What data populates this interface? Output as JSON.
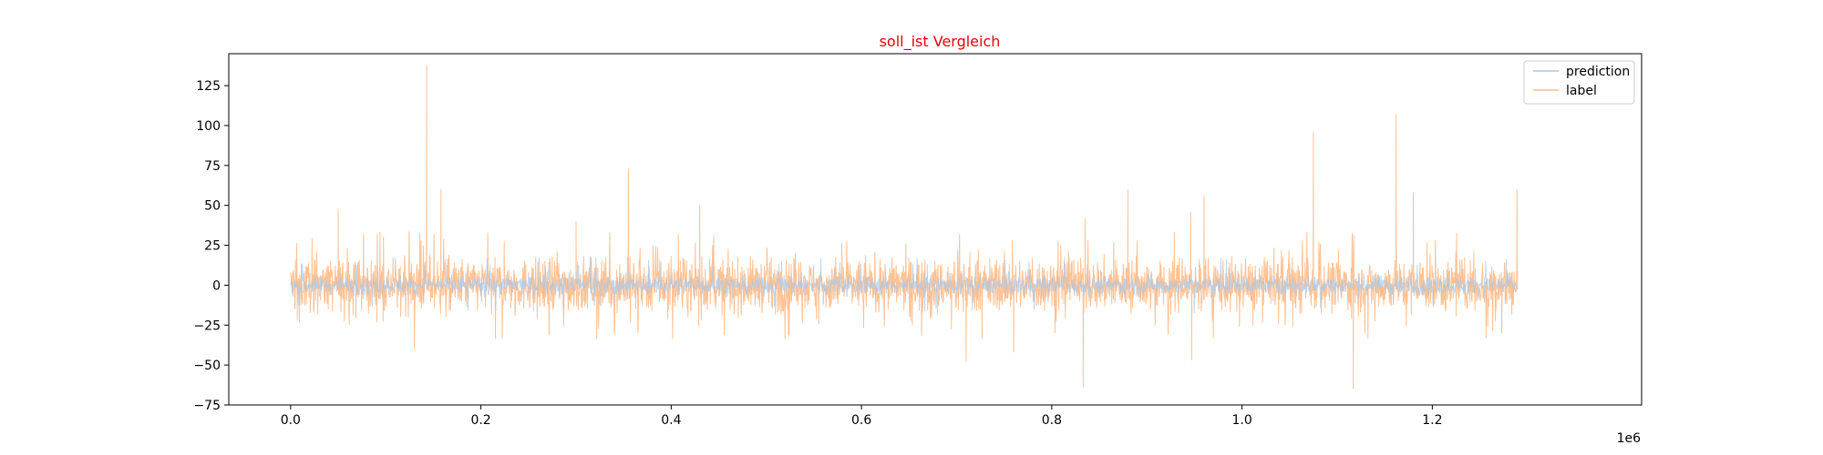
{
  "chart_data": {
    "type": "line",
    "title": "soll_ist Vergleich",
    "title_color": "#e8000b",
    "xlabel": "",
    "ylabel": "",
    "x_offset_label": "1e6",
    "xlim": [
      -0.065,
      1.42
    ],
    "ylim": [
      -75,
      145
    ],
    "x_ticks": [
      0.0,
      0.2,
      0.4,
      0.6,
      0.8,
      1.0,
      1.2
    ],
    "x_tick_labels": [
      "0.0",
      "0.2",
      "0.4",
      "0.6",
      "0.8",
      "1.0",
      "1.2"
    ],
    "y_ticks": [
      -75,
      -50,
      -25,
      0,
      25,
      50,
      75,
      100,
      125
    ],
    "y_tick_labels": [
      "−75",
      "−50",
      "−25",
      "0",
      "25",
      "50",
      "75",
      "100",
      "125"
    ],
    "grid": false,
    "legend_position": "top-right",
    "series": [
      {
        "name": "prediction",
        "color": "#a6c8ea",
        "x_range": [
          0.0,
          1.29
        ],
        "typical_amplitude": 3
      },
      {
        "name": "label",
        "color": "#ffbb88",
        "x_range": [
          0.0,
          1.29
        ],
        "typical_amplitude": 8,
        "peaks": [
          [
            0.005,
            16
          ],
          [
            0.007,
            -22
          ],
          [
            0.05,
            48
          ],
          [
            0.13,
            -40
          ],
          [
            0.143,
            138
          ],
          [
            0.158,
            60
          ],
          [
            0.3,
            40
          ],
          [
            0.355,
            73
          ],
          [
            0.365,
            -30
          ],
          [
            0.43,
            50
          ],
          [
            0.71,
            -48
          ],
          [
            0.76,
            -42
          ],
          [
            0.833,
            -64
          ],
          [
            0.835,
            42
          ],
          [
            0.88,
            60
          ],
          [
            0.946,
            46
          ],
          [
            0.947,
            -47
          ],
          [
            0.96,
            56
          ],
          [
            1.075,
            96
          ],
          [
            1.117,
            -65
          ],
          [
            1.162,
            107
          ],
          [
            1.18,
            58
          ],
          [
            1.289,
            60
          ]
        ]
      }
    ]
  }
}
